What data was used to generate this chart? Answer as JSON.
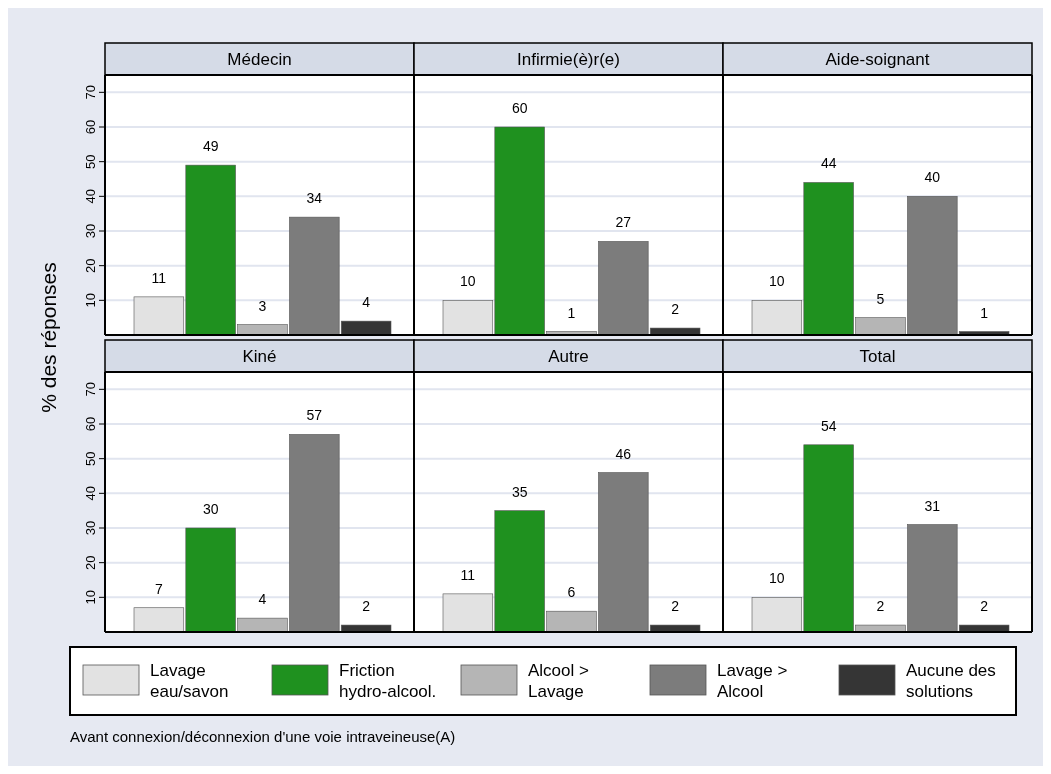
{
  "chart_data": [
    {
      "type": "bar",
      "ylabel": "% des réponses",
      "legend": "bottom",
      "annotations": [
        "Avant connexion/déconnexion d'une voie intraveineuse(A)"
      ],
      "categories": [
        "Médecin",
        "Infirmie(è)r(e)",
        "Aide-soignant"
      ],
      "ylim": [
        0,
        75
      ],
      "yticks": [
        10,
        20,
        30,
        40,
        50,
        60,
        70
      ],
      "grid": "y",
      "data_labels": true,
      "series": [
        {
          "name": "Lavage\neau/savon",
          "color": "#e2e2e2",
          "values": [
            11,
            10,
            10
          ]
        },
        {
          "name": "Friction\nhydro-alcool.",
          "color": "#1f911f",
          "values": [
            49,
            60,
            44
          ]
        },
        {
          "name": "Alcool >\nLavage",
          "color": "#b5b5b5",
          "values": [
            3,
            1,
            5
          ]
        },
        {
          "name": "Lavage >\nAlcool",
          "color": "#7c7c7c",
          "values": [
            34,
            27,
            40
          ]
        },
        {
          "name": "Aucune des\nsolutions",
          "color": "#353535",
          "values": [
            4,
            2,
            1
          ]
        }
      ]
    },
    {
      "type": "bar",
      "categories": [
        "Kiné",
        "Autre",
        "Total"
      ],
      "ylim": [
        0,
        75
      ],
      "yticks": [
        10,
        20,
        30,
        40,
        50,
        60,
        70
      ],
      "grid": "y",
      "data_labels": true,
      "series": [
        {
          "color": "#e2e2e2",
          "values": [
            7,
            11,
            10
          ]
        },
        {
          "color": "#1f911f",
          "values": [
            30,
            35,
            54
          ]
        },
        {
          "color": "#b5b5b5",
          "values": [
            4,
            6,
            2
          ]
        },
        {
          "color": "#7c7c7c",
          "values": [
            57,
            46,
            31
          ]
        },
        {
          "color": "#353535",
          "values": [
            2,
            2,
            2
          ]
        }
      ]
    }
  ]
}
